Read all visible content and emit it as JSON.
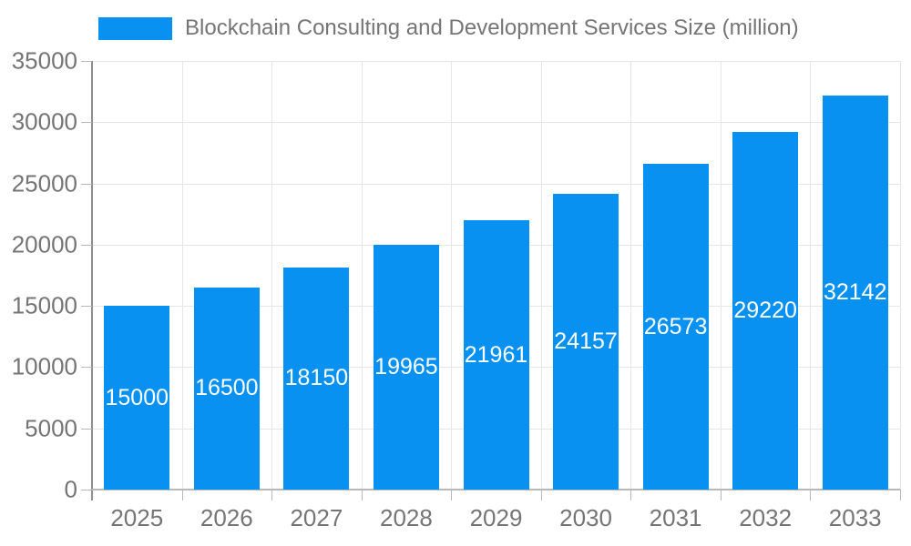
{
  "legend": {
    "label": "Blockchain Consulting and Development Services Size (million)"
  },
  "chart_data": {
    "type": "bar",
    "title": "Blockchain Consulting and Development Services Size (million)",
    "categories": [
      "2025",
      "2026",
      "2027",
      "2028",
      "2029",
      "2030",
      "2031",
      "2032",
      "2033"
    ],
    "values": [
      15000,
      16500,
      18150,
      19965,
      21961,
      24157,
      26573,
      29220,
      32142
    ],
    "value_labels": [
      "15000",
      "16500",
      "18150",
      "19965",
      "21961",
      "24157",
      "26573",
      "29220",
      "32142"
    ],
    "xlabel": "",
    "ylabel": "",
    "ylim": [
      0,
      35000
    ],
    "ytick_step": 5000,
    "ytick_labels": [
      "0",
      "5000",
      "10000",
      "15000",
      "20000",
      "25000",
      "30000",
      "35000"
    ],
    "grid": true,
    "legend_position": "top-left",
    "value_label_position": "inside-middle",
    "colors": {
      "bar": "#0991f2",
      "value_label": "#ffffff",
      "axis_text": "#757575",
      "grid_line": "#e6e6e6",
      "y_axis_line": "#8f8f8f",
      "x_axis_line": "#b8b8b8"
    }
  }
}
